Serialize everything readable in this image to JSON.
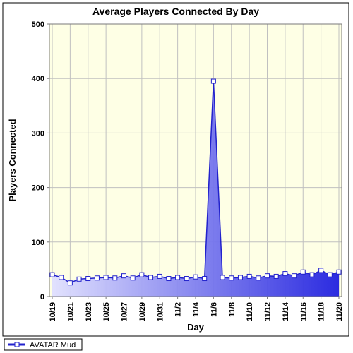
{
  "chart": {
    "type": "area",
    "title": "Average Players Connected By Day",
    "title_fontsize": 14,
    "xlabel": "Day",
    "ylabel": "Players Connected",
    "label_fontsize": 13,
    "tick_fontsize": 11,
    "outer_border_color": "#000000",
    "plot_border_color": "#7a7a7a",
    "plot_background_color": "#feffe5",
    "grid_color": "#c0c0c0",
    "ylim": [
      0,
      500
    ],
    "ytick_step": 100,
    "categories": [
      "10/19",
      "10/20",
      "10/21",
      "10/22",
      "10/23",
      "10/24",
      "10/25",
      "10/26",
      "10/27",
      "10/28",
      "10/29",
      "10/30",
      "10/31",
      "11/1",
      "11/2",
      "11/3",
      "11/4",
      "11/5",
      "11/6",
      "11/7",
      "11/8",
      "11/9",
      "11/10",
      "11/11",
      "11/12",
      "11/13",
      "11/14",
      "11/15",
      "11/16",
      "11/17",
      "11/18",
      "11/19",
      "11/20"
    ],
    "xtick_every": 2,
    "series": [
      {
        "name": "AVATAR Mud",
        "line_color": "#2222cc",
        "marker_fill": "#ffffff",
        "marker_stroke": "#2222cc",
        "marker_size": 3,
        "gradient_from": "#e0e0ff",
        "gradient_to": "#2020e0",
        "values": [
          40,
          35,
          25,
          32,
          33,
          34,
          35,
          34,
          38,
          34,
          40,
          35,
          37,
          33,
          35,
          33,
          36,
          33,
          395,
          35,
          34,
          35,
          37,
          34,
          38,
          37,
          42,
          38,
          45,
          40,
          48,
          40,
          45
        ]
      }
    ],
    "legend": {
      "text": "AVATAR Mud",
      "border_color": "#000000",
      "swatch_fill": "#2222cc",
      "marker_fill": "#ffffff"
    }
  }
}
